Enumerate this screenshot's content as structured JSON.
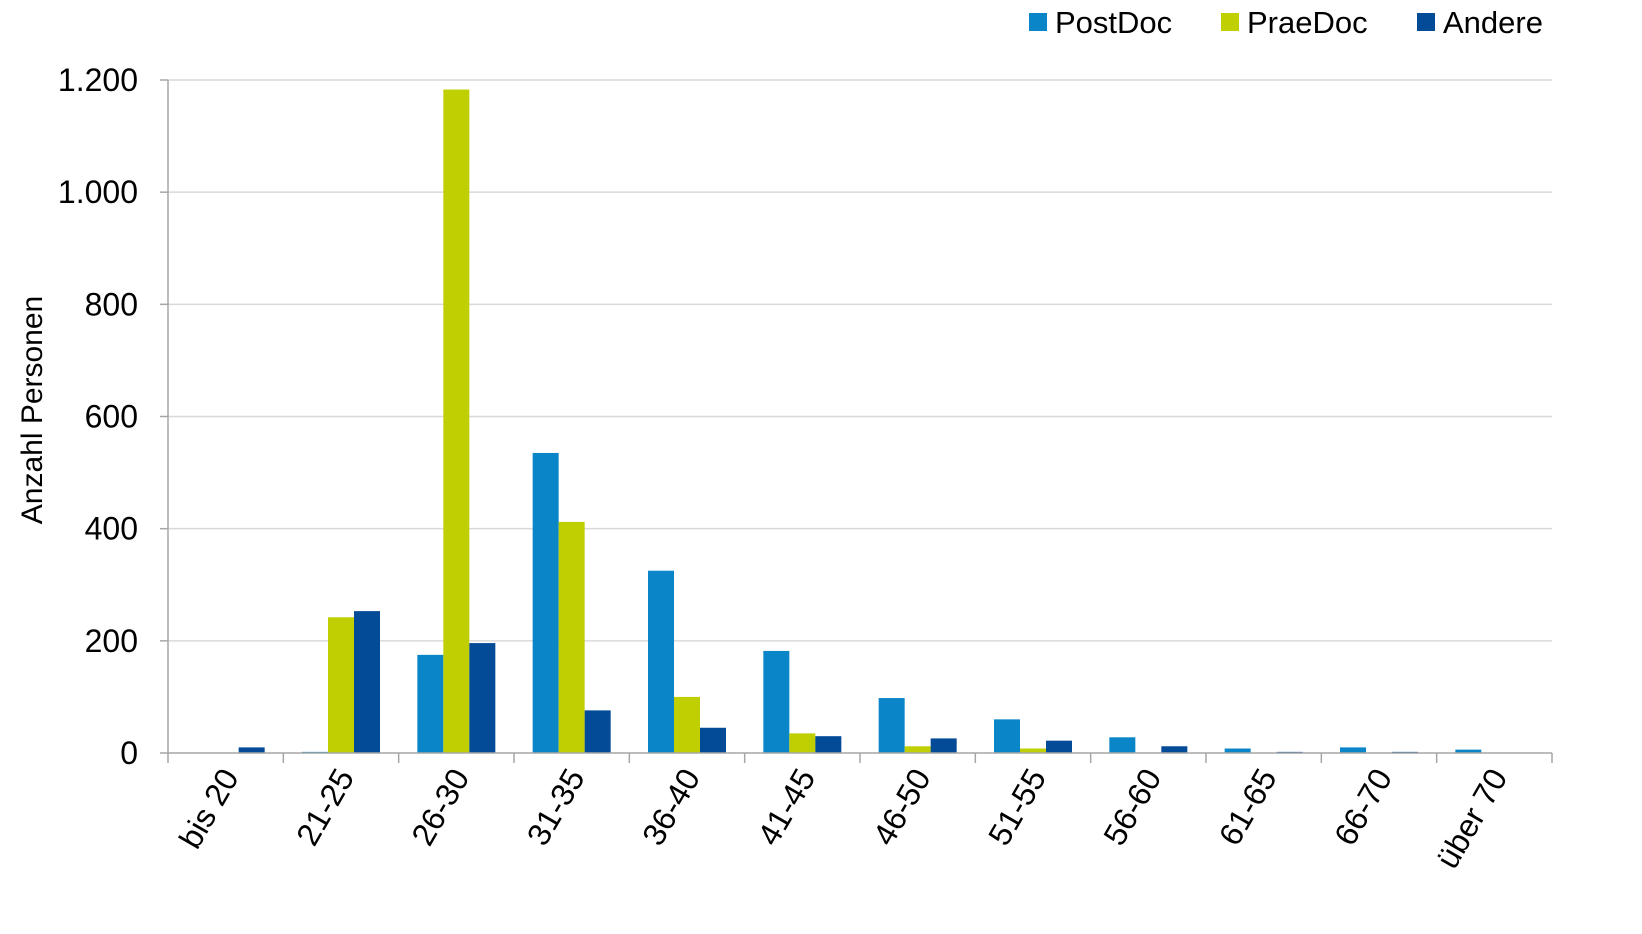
{
  "chart_data": {
    "type": "bar",
    "ylabel": "Anzahl Personen",
    "categories": [
      "bis 20",
      "21-25",
      "26-30",
      "31-35",
      "36-40",
      "41-45",
      "46-50",
      "51-55",
      "56-60",
      "61-65",
      "66-70",
      "über 70"
    ],
    "series": [
      {
        "name": "PostDoc",
        "color": "#0a86c8",
        "values": [
          0,
          2,
          175,
          535,
          325,
          182,
          98,
          60,
          28,
          8,
          10,
          6
        ]
      },
      {
        "name": "PraeDoc",
        "color": "#bfcf02",
        "values": [
          0,
          242,
          1183,
          412,
          100,
          35,
          12,
          8,
          0,
          0,
          0,
          0
        ]
      },
      {
        "name": "Andere",
        "color": "#034a97",
        "values": [
          10,
          253,
          196,
          76,
          45,
          30,
          26,
          22,
          12,
          2,
          2,
          0
        ]
      }
    ],
    "ylim": [
      0,
      1200
    ],
    "yticks": [
      0,
      200,
      400,
      600,
      800,
      1000,
      1200
    ],
    "ytick_labels": [
      "0",
      "200",
      "400",
      "600",
      "800",
      "1.000",
      "1.200"
    ],
    "grid": true,
    "legend_position": "top-right"
  }
}
